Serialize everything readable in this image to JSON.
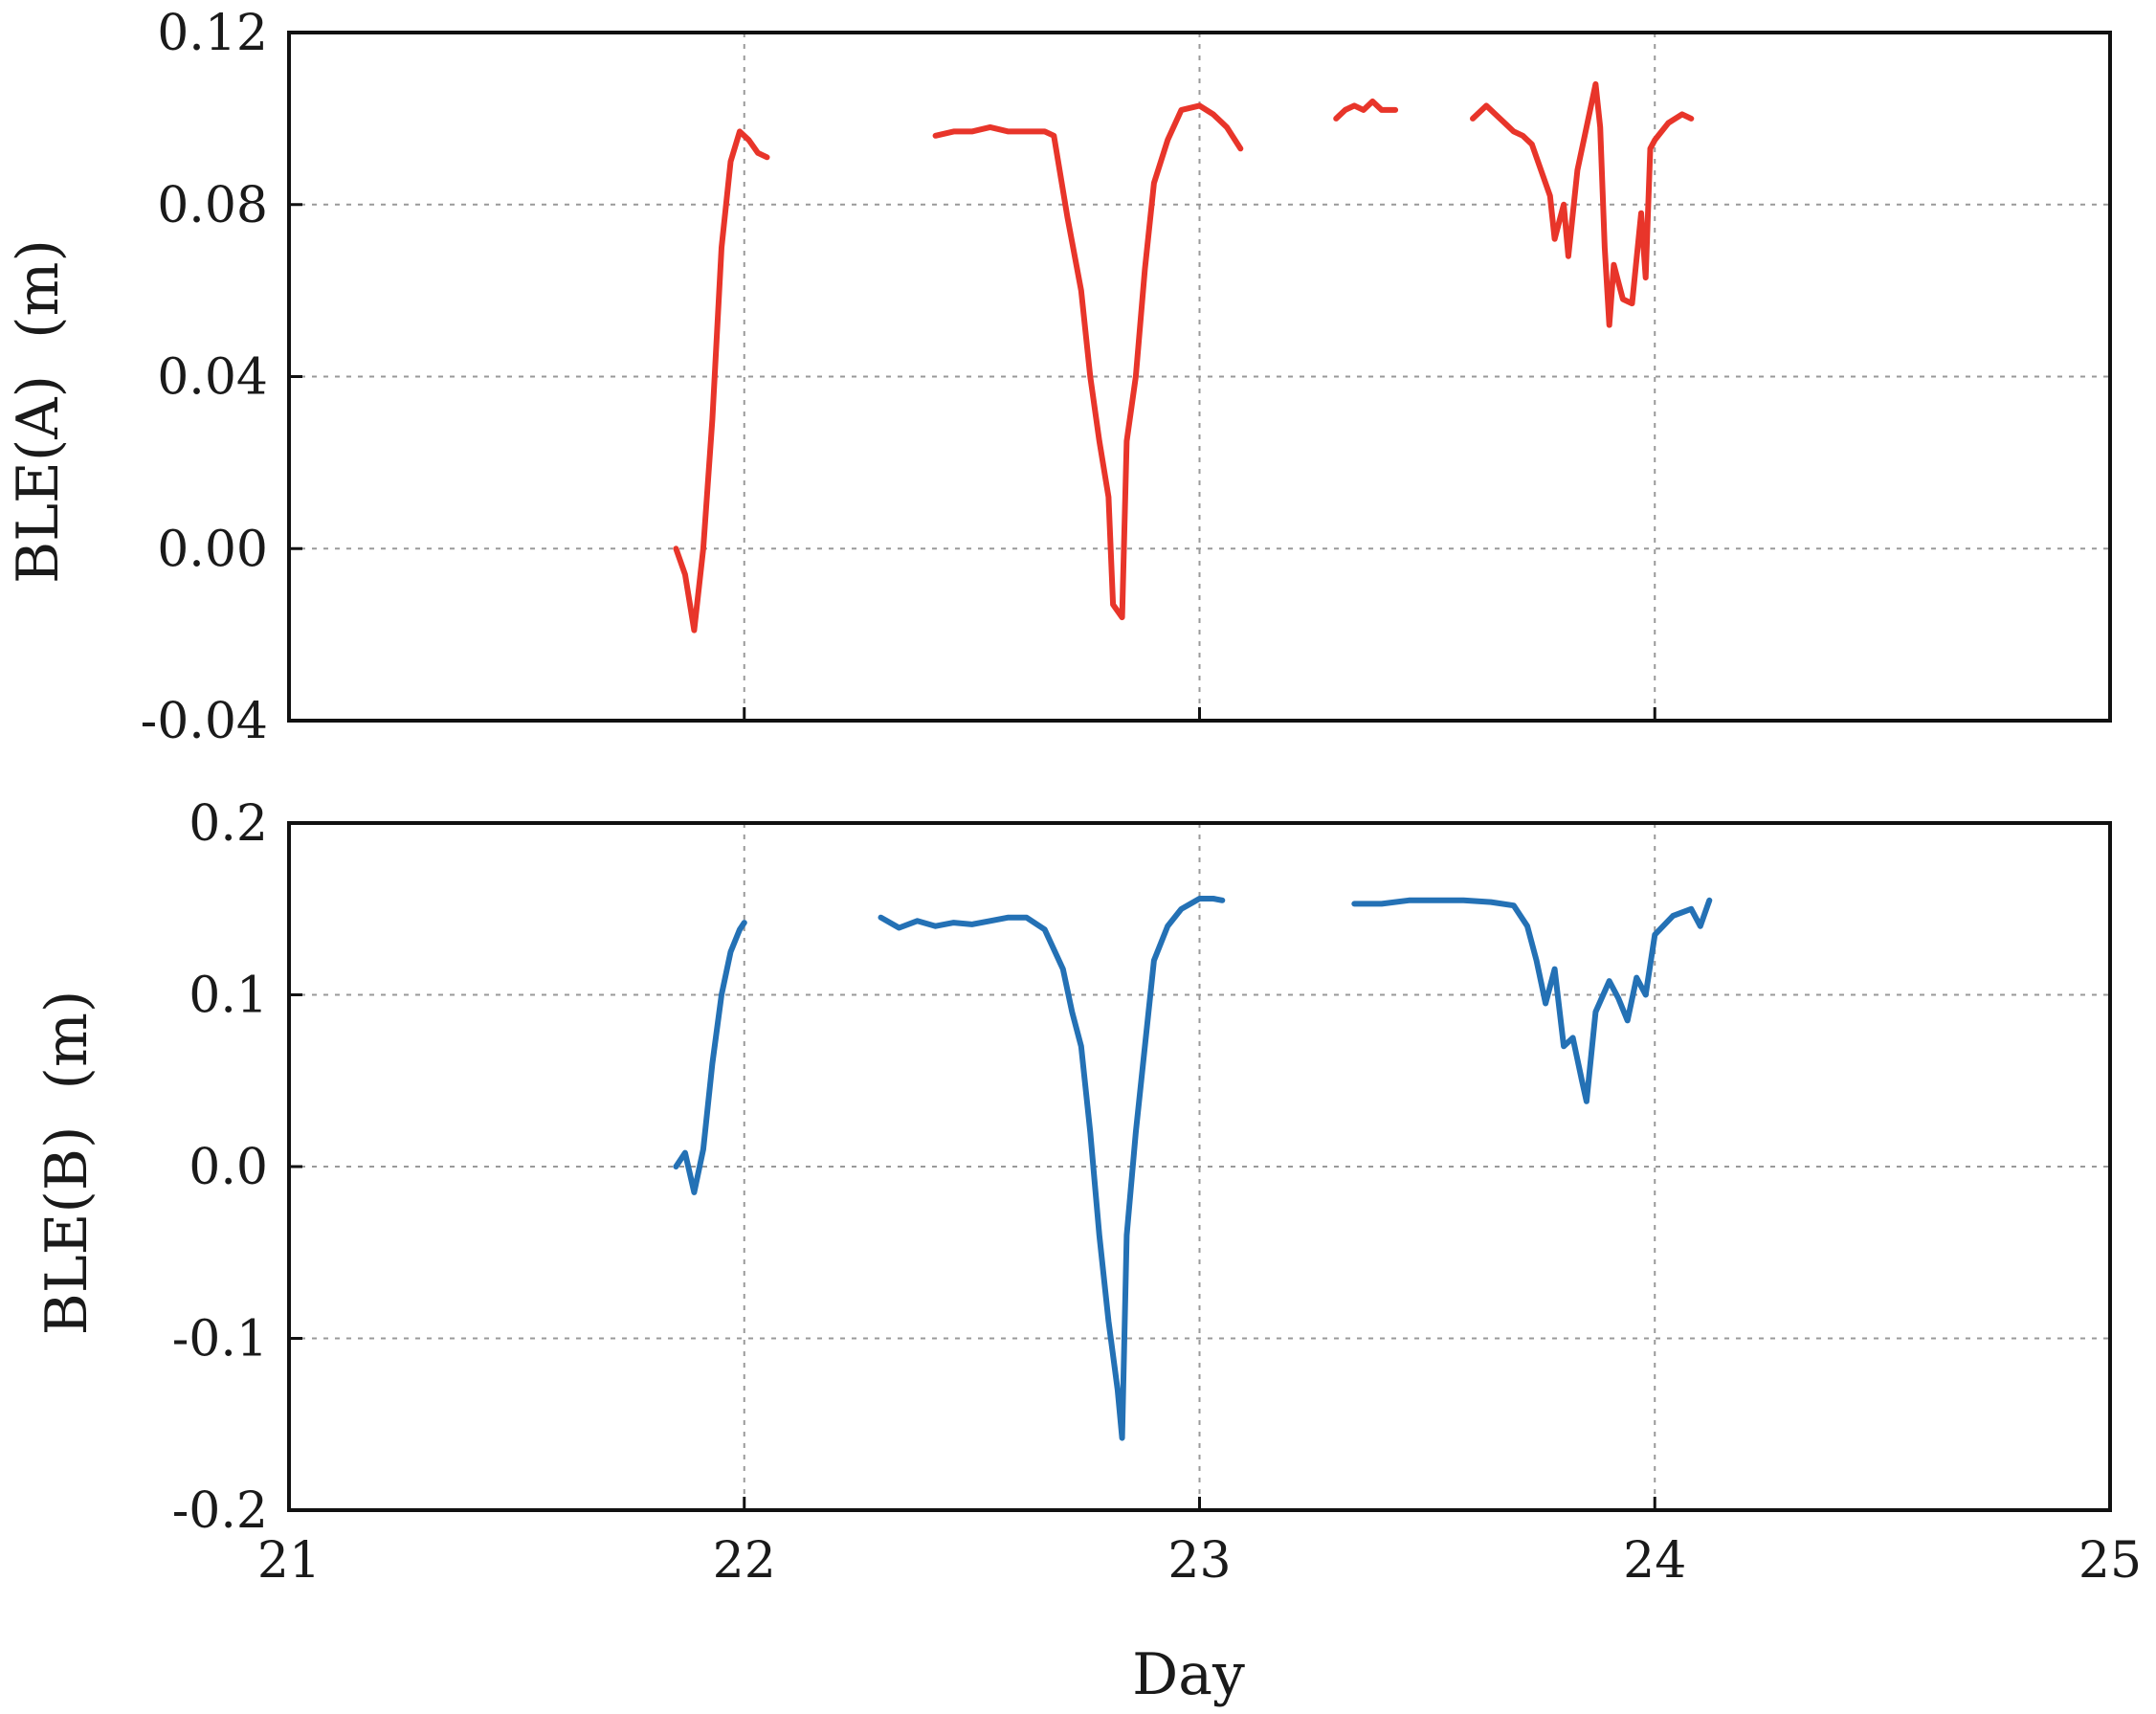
{
  "chart_data": [
    {
      "type": "line",
      "panel": "top",
      "xlabel": "",
      "ylabel": "BLE(A)  (m)",
      "xlim": [
        21,
        25
      ],
      "ylim": [
        -0.04,
        0.12
      ],
      "yticks": [
        -0.04,
        0.0,
        0.04,
        0.08,
        0.12
      ],
      "ytick_labels": [
        "-0.04",
        "0.00",
        "0.04",
        "0.08",
        "0.12"
      ],
      "xticks": [
        21,
        22,
        23,
        24,
        25
      ],
      "grid": true,
      "legend": "none",
      "series": [
        {
          "color": "#e8352a",
          "segments": [
            [
              [
                21.85,
                0.0
              ],
              [
                21.87,
                -0.006
              ],
              [
                21.89,
                -0.019
              ],
              [
                21.91,
                0.0
              ],
              [
                21.93,
                0.03
              ],
              [
                21.95,
                0.07
              ],
              [
                21.97,
                0.09
              ],
              [
                21.99,
                0.097
              ],
              [
                22.01,
                0.095
              ],
              [
                22.03,
                0.092
              ],
              [
                22.05,
                0.091
              ]
            ],
            [
              [
                22.42,
                0.096
              ],
              [
                22.46,
                0.097
              ],
              [
                22.5,
                0.097
              ],
              [
                22.54,
                0.098
              ],
              [
                22.58,
                0.097
              ],
              [
                22.62,
                0.097
              ],
              [
                22.66,
                0.097
              ],
              [
                22.68,
                0.096
              ],
              [
                22.71,
                0.077
              ],
              [
                22.74,
                0.06
              ],
              [
                22.76,
                0.04
              ],
              [
                22.78,
                0.025
              ],
              [
                22.8,
                0.012
              ],
              [
                22.81,
                -0.013
              ],
              [
                22.83,
                -0.016
              ],
              [
                22.84,
                0.025
              ],
              [
                22.86,
                0.04
              ],
              [
                22.88,
                0.065
              ],
              [
                22.9,
                0.085
              ],
              [
                22.93,
                0.095
              ],
              [
                22.96,
                0.102
              ],
              [
                23.0,
                0.103
              ],
              [
                23.03,
                0.101
              ],
              [
                23.06,
                0.098
              ],
              [
                23.09,
                0.093
              ]
            ],
            [
              [
                23.3,
                0.1
              ],
              [
                23.32,
                0.102
              ],
              [
                23.34,
                0.103
              ],
              [
                23.36,
                0.102
              ],
              [
                23.38,
                0.104
              ],
              [
                23.4,
                0.102
              ],
              [
                23.43,
                0.102
              ]
            ],
            [
              [
                23.6,
                0.1
              ],
              [
                23.63,
                0.103
              ],
              [
                23.66,
                0.1
              ],
              [
                23.69,
                0.097
              ],
              [
                23.71,
                0.096
              ],
              [
                23.73,
                0.094
              ],
              [
                23.75,
                0.088
              ],
              [
                23.77,
                0.082
              ],
              [
                23.78,
                0.072
              ],
              [
                23.8,
                0.08
              ],
              [
                23.81,
                0.068
              ],
              [
                23.83,
                0.088
              ],
              [
                23.85,
                0.098
              ],
              [
                23.87,
                0.108
              ],
              [
                23.88,
                0.098
              ],
              [
                23.89,
                0.07
              ],
              [
                23.9,
                0.052
              ],
              [
                23.91,
                0.066
              ],
              [
                23.93,
                0.058
              ],
              [
                23.95,
                0.057
              ],
              [
                23.97,
                0.078
              ],
              [
                23.98,
                0.063
              ],
              [
                23.99,
                0.093
              ],
              [
                24.0,
                0.095
              ],
              [
                24.03,
                0.099
              ],
              [
                24.06,
                0.101
              ],
              [
                24.08,
                0.1
              ]
            ]
          ]
        }
      ]
    },
    {
      "type": "line",
      "panel": "bottom",
      "xlabel": "Day",
      "ylabel": "BLE(B)  (m)",
      "xlim": [
        21,
        25
      ],
      "ylim": [
        -0.2,
        0.2
      ],
      "yticks": [
        -0.2,
        -0.1,
        0.0,
        0.1,
        0.2
      ],
      "ytick_labels": [
        "-0.2",
        "-0.1",
        "0.0",
        "0.1",
        "0.2"
      ],
      "xticks": [
        21,
        22,
        23,
        24,
        25
      ],
      "xtick_labels": [
        "21",
        "22",
        "23",
        "24",
        "25"
      ],
      "grid": true,
      "legend": "none",
      "series": [
        {
          "color": "#2471b5",
          "segments": [
            [
              [
                21.85,
                0.0
              ],
              [
                21.87,
                0.008
              ],
              [
                21.89,
                -0.015
              ],
              [
                21.91,
                0.01
              ],
              [
                21.93,
                0.06
              ],
              [
                21.95,
                0.1
              ],
              [
                21.97,
                0.125
              ],
              [
                21.99,
                0.138
              ],
              [
                22.0,
                0.142
              ]
            ],
            [
              [
                22.3,
                0.145
              ],
              [
                22.34,
                0.139
              ],
              [
                22.38,
                0.143
              ],
              [
                22.42,
                0.14
              ],
              [
                22.46,
                0.142
              ],
              [
                22.5,
                0.141
              ],
              [
                22.54,
                0.143
              ],
              [
                22.58,
                0.145
              ],
              [
                22.62,
                0.145
              ],
              [
                22.66,
                0.138
              ],
              [
                22.7,
                0.115
              ],
              [
                22.72,
                0.09
              ],
              [
                22.74,
                0.07
              ],
              [
                22.76,
                0.02
              ],
              [
                22.78,
                -0.04
              ],
              [
                22.8,
                -0.09
              ],
              [
                22.82,
                -0.13
              ],
              [
                22.83,
                -0.158
              ],
              [
                22.84,
                -0.04
              ],
              [
                22.86,
                0.02
              ],
              [
                22.88,
                0.07
              ],
              [
                22.9,
                0.12
              ],
              [
                22.93,
                0.14
              ],
              [
                22.96,
                0.15
              ],
              [
                23.0,
                0.156
              ],
              [
                23.03,
                0.156
              ],
              [
                23.05,
                0.155
              ]
            ],
            [
              [
                23.34,
                0.153
              ],
              [
                23.4,
                0.153
              ],
              [
                23.46,
                0.155
              ],
              [
                23.52,
                0.155
              ],
              [
                23.58,
                0.155
              ],
              [
                23.64,
                0.154
              ],
              [
                23.69,
                0.152
              ],
              [
                23.72,
                0.14
              ],
              [
                23.74,
                0.12
              ],
              [
                23.76,
                0.095
              ],
              [
                23.78,
                0.115
              ],
              [
                23.8,
                0.07
              ],
              [
                23.82,
                0.075
              ],
              [
                23.84,
                0.05
              ],
              [
                23.85,
                0.038
              ],
              [
                23.87,
                0.09
              ],
              [
                23.9,
                0.108
              ],
              [
                23.92,
                0.098
              ],
              [
                23.94,
                0.085
              ],
              [
                23.96,
                0.11
              ],
              [
                23.98,
                0.1
              ],
              [
                24.0,
                0.135
              ],
              [
                24.04,
                0.146
              ],
              [
                24.08,
                0.15
              ],
              [
                24.1,
                0.14
              ],
              [
                24.12,
                0.155
              ]
            ]
          ]
        }
      ]
    }
  ]
}
